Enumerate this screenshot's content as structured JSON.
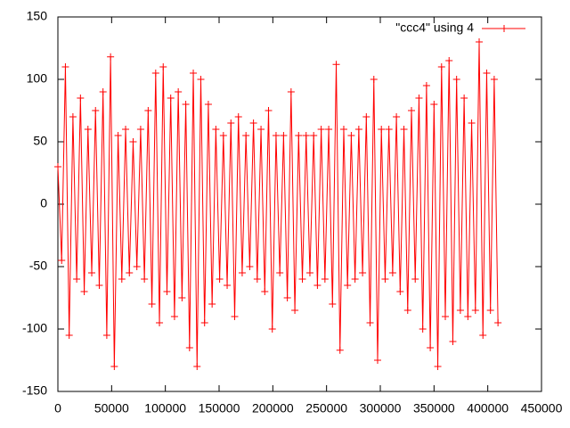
{
  "chart_data": {
    "type": "line",
    "xlim": [
      0,
      450000
    ],
    "xticks": [
      0,
      50000,
      100000,
      150000,
      200000,
      250000,
      300000,
      350000,
      400000,
      450000
    ],
    "ylim": [
      -150,
      150
    ],
    "yticks": [
      -150,
      -100,
      -50,
      0,
      50,
      100,
      150
    ],
    "legend": "top-right",
    "x": [
      0,
      3500,
      7000,
      10500,
      14000,
      17500,
      21000,
      24500,
      28000,
      31500,
      35000,
      38500,
      42000,
      45500,
      49000,
      52500,
      56000,
      59500,
      63000,
      66500,
      70000,
      73500,
      77000,
      80500,
      84000,
      87500,
      91000,
      94500,
      98000,
      101500,
      105000,
      108500,
      112000,
      115500,
      119000,
      122500,
      126000,
      129500,
      133000,
      136500,
      140000,
      143500,
      147000,
      150500,
      154000,
      157500,
      161000,
      164500,
      168000,
      171500,
      175000,
      178500,
      182000,
      185500,
      189000,
      192500,
      196000,
      199500,
      203000,
      206500,
      210000,
      213500,
      217000,
      220500,
      224000,
      227500,
      231000,
      234500,
      238000,
      241500,
      245000,
      248500,
      252000,
      255500,
      259000,
      262500,
      266000,
      269500,
      273000,
      276500,
      280000,
      283500,
      287000,
      290500,
      294000,
      297500,
      301000,
      304500,
      308000,
      311500,
      315000,
      318500,
      322000,
      325500,
      329000,
      332500,
      336000,
      339500,
      343000,
      346500,
      350000,
      353500,
      357000,
      360500,
      364000,
      367500,
      371000,
      374500,
      378000,
      381500,
      385000,
      388500,
      392000,
      395500,
      399000,
      402500,
      406000,
      409500
    ],
    "series": [
      {
        "name": "\"ccc4\" using 4",
        "color": "#ff0000",
        "values": [
          30,
          -45,
          110,
          -105,
          70,
          -60,
          85,
          -70,
          60,
          -55,
          75,
          -65,
          90,
          -105,
          118,
          -130,
          55,
          -60,
          60,
          -55,
          50,
          -50,
          60,
          -60,
          75,
          -80,
          105,
          -95,
          110,
          -70,
          85,
          -90,
          90,
          -75,
          80,
          -115,
          105,
          -130,
          100,
          -95,
          80,
          -80,
          60,
          -60,
          55,
          -65,
          65,
          -90,
          70,
          -55,
          55,
          -50,
          65,
          -60,
          60,
          -70,
          75,
          -100,
          55,
          -55,
          55,
          -75,
          90,
          -85,
          55,
          -60,
          55,
          -55,
          55,
          -65,
          60,
          -60,
          60,
          -80,
          112,
          -117,
          60,
          -65,
          55,
          -60,
          60,
          -55,
          70,
          -95,
          100,
          -125,
          60,
          -60,
          60,
          -55,
          70,
          -70,
          60,
          -85,
          75,
          -60,
          85,
          -100,
          95,
          -115,
          80,
          -130,
          110,
          -90,
          115,
          -110,
          100,
          -85,
          85,
          -90,
          65,
          -85,
          130,
          -105,
          105,
          -85,
          100,
          -95
        ]
      }
    ]
  }
}
